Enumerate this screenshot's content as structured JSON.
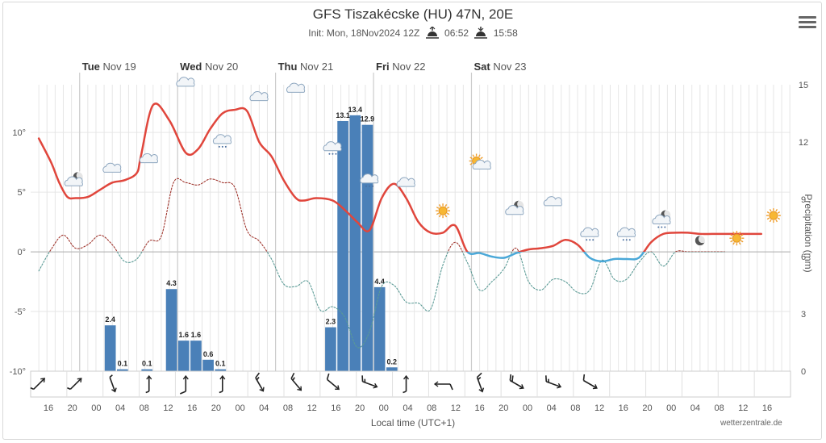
{
  "title": "GFS Tiszakécske (HU) 47N, 20E",
  "subtitle": {
    "init": "Init: Mon, 18Nov2024 12Z",
    "sunrise": "06:52",
    "sunset": "15:58"
  },
  "credit": "wetterzentrale.de",
  "menu_icon": "hamburger-menu-icon",
  "colors": {
    "temp_above": "#e0463c",
    "temp_below": "#4aa8d8",
    "dewpoint_above": "#a0362e",
    "dewpoint_below": "#5a9a95",
    "precip_bar": "#4a80b8",
    "grid": "#e6e6e6",
    "day_line": "#cccccc"
  },
  "chart_data": {
    "type": "line+bar",
    "x_unit": "hours since Mon 18 Nov 12:00 local",
    "xlabel": "Local time (UTC+1)",
    "x_tick_labels": [
      "16",
      "20",
      "00",
      "04",
      "08",
      "12",
      "16",
      "20",
      "00",
      "04",
      "08",
      "12",
      "16",
      "20",
      "00",
      "04",
      "08",
      "12",
      "16",
      "20",
      "00",
      "04",
      "08",
      "12",
      "16",
      "20",
      "00",
      "04",
      "08",
      "12",
      "16"
    ],
    "days": [
      {
        "label": "Tue",
        "date": "Nov 19"
      },
      {
        "label": "Wed",
        "date": "Nov 20"
      },
      {
        "label": "Thu",
        "date": "Nov 21"
      },
      {
        "label": "Fri",
        "date": "Nov 22"
      },
      {
        "label": "Sat",
        "date": "Nov 23"
      }
    ],
    "y_left": {
      "ticks": [
        "10°",
        "5°",
        "0°",
        "-5°",
        "-10°"
      ],
      "values": [
        10,
        5,
        0,
        -5,
        -10
      ],
      "range": [
        -10,
        14
      ]
    },
    "y_right": {
      "label": "Precipitation (mm)",
      "ticks": [
        "15",
        "12",
        "9",
        "6",
        "3",
        "0"
      ],
      "values": [
        15,
        12,
        9,
        6,
        3,
        0
      ],
      "range": [
        0,
        15
      ]
    },
    "temperature": {
      "x": [
        2,
        5,
        7,
        9,
        11,
        14,
        17,
        20,
        23,
        26,
        27,
        30,
        34,
        38,
        41,
        44,
        47,
        50,
        53,
        56,
        59,
        62,
        65,
        67,
        70,
        74,
        77,
        80,
        83,
        86,
        89,
        92,
        95,
        98,
        101,
        104,
        107,
        110,
        113,
        116,
        119,
        122,
        125,
        128,
        131,
        134,
        137,
        140,
        143,
        146,
        149,
        152,
        155,
        158,
        161,
        164,
        167,
        170,
        173,
        176,
        179
      ],
      "y": [
        9.5,
        7.5,
        5.8,
        4.6,
        4.5,
        4.6,
        5.2,
        5.8,
        6.0,
        6.6,
        8.0,
        12.3,
        11.0,
        8.3,
        8.6,
        10.3,
        11.6,
        11.9,
        11.8,
        9.2,
        8.0,
        6.0,
        4.5,
        4.3,
        4.5,
        4.3,
        3.5,
        2.5,
        1.8,
        4.5,
        5.7,
        4.5,
        2.5,
        1.6,
        1.6,
        2.2,
        0.0,
        -0.1,
        -0.4,
        -0.5,
        -0.1,
        0.2,
        0.3,
        0.5,
        1.0,
        0.6,
        -0.5,
        -0.8,
        -0.6,
        -0.6,
        -0.5,
        0.8,
        1.5,
        1.6,
        1.6,
        1.5,
        1.5,
        1.5,
        1.5,
        1.5,
        1.5
      ]
    },
    "dewpoint": {
      "x": [
        2,
        5,
        8,
        11,
        14,
        17,
        20,
        23,
        26,
        29,
        32,
        35,
        38,
        41,
        44,
        47,
        50,
        53,
        56,
        59,
        62,
        65,
        68,
        71,
        74,
        77,
        80,
        83,
        86,
        89,
        92,
        95,
        98,
        101,
        104,
        107,
        110,
        113,
        116,
        119,
        122,
        125,
        128,
        131,
        134,
        137,
        140,
        143,
        146,
        149,
        152,
        155,
        158,
        161,
        164,
        167,
        170,
        173
      ],
      "y": [
        -1.6,
        0.2,
        1.4,
        0.3,
        0.6,
        1.4,
        0.6,
        -0.8,
        -0.6,
        0.9,
        1.3,
        5.8,
        5.8,
        5.6,
        6.1,
        5.8,
        5.4,
        1.8,
        0.9,
        -0.6,
        -2.7,
        -2.9,
        -2.5,
        -4.9,
        -4.6,
        -5.5,
        -8.0,
        -6.7,
        -2.9,
        -2.8,
        -4.2,
        -4.3,
        -4.8,
        -1.1,
        0.8,
        -0.9,
        -3.2,
        -2.5,
        -1.4,
        0.3,
        -2.5,
        -3.2,
        -2.3,
        -2.5,
        -3.4,
        -3.2,
        -0.7,
        -2.3,
        -2.3,
        -0.9,
        0.0,
        -1.2,
        0.0,
        0,
        0,
        0,
        0,
        0
      ]
    },
    "precipitation": {
      "x": [
        13.5,
        16.5,
        19.5,
        22.5,
        25.5,
        28.5,
        31.5,
        34.5,
        37.5,
        40.5,
        43.5,
        46.5,
        49.5,
        52.5,
        55.5,
        58.5,
        61.5,
        64.5,
        67.5,
        70.5,
        73.5,
        76.5,
        79.5,
        82.5,
        85.5,
        88.5,
        91.5,
        94.5
      ],
      "y": [
        0,
        0,
        2.4,
        0.1,
        0,
        0.1,
        0,
        4.3,
        1.6,
        1.6,
        0.6,
        0.1,
        0,
        0,
        0,
        0,
        0,
        0,
        0,
        0,
        2.3,
        13.1,
        13.4,
        12.9,
        4.4,
        0.2,
        0,
        0
      ],
      "labels": [
        "",
        "",
        "2.4",
        "0.1",
        "",
        "0.1",
        "",
        "4.3",
        "1.6",
        "1.6",
        "0.6",
        "0.1",
        "",
        "",
        "",
        "",
        "",
        "",
        "",
        "",
        "2.3",
        "13.1",
        "13.4",
        "12.9",
        "4.4",
        "0.2",
        "",
        ""
      ]
    },
    "weather_icons": [
      {
        "x": 11,
        "temp": 5.4,
        "icon": "moon-cloud-icon"
      },
      {
        "x": 20,
        "temp": 6.4,
        "icon": "cloud-icon"
      },
      {
        "x": 29,
        "temp": 7.2,
        "icon": "cloud-icon"
      },
      {
        "x": 38,
        "temp": 13.6,
        "icon": "cloud-icon"
      },
      {
        "x": 47,
        "temp": 8.8,
        "icon": "cloud-rain-icon"
      },
      {
        "x": 56,
        "temp": 12.4,
        "icon": "cloud-icon"
      },
      {
        "x": 65,
        "temp": 13.1,
        "icon": "cloud-icon"
      },
      {
        "x": 74,
        "temp": 8.2,
        "icon": "cloud-rain-icon"
      },
      {
        "x": 83,
        "temp": 5.5,
        "icon": "cloud-rain-icon"
      },
      {
        "x": 92,
        "temp": 5.2,
        "icon": "cloud-icon"
      },
      {
        "x": 101,
        "temp": 2.9,
        "icon": "sun-icon"
      },
      {
        "x": 110,
        "temp": 6.8,
        "icon": "sun-cloud-icon"
      },
      {
        "x": 119,
        "temp": 3.0,
        "icon": "moon-cloud-icon"
      },
      {
        "x": 128,
        "temp": 3.6,
        "icon": "cloud-icon"
      },
      {
        "x": 137,
        "temp": 1.0,
        "icon": "cloud-rain-icon"
      },
      {
        "x": 146,
        "temp": 1.0,
        "icon": "cloud-rain-icon"
      },
      {
        "x": 155,
        "temp": 2.2,
        "icon": "moon-cloud-rain-icon"
      },
      {
        "x": 164,
        "temp": 0.4,
        "icon": "moon-icon"
      },
      {
        "x": 173,
        "temp": 0.6,
        "icon": "sun-icon"
      },
      {
        "x": 182,
        "temp": 2.5,
        "icon": "sun-icon"
      }
    ],
    "wind_barbs": [
      {
        "x": 2,
        "dir": 225,
        "kt": 5
      },
      {
        "x": 11,
        "dir": 225,
        "kt": 5
      },
      {
        "x": 20,
        "dir": 340,
        "kt": 5
      },
      {
        "x": 29,
        "dir": 180,
        "kt": 5
      },
      {
        "x": 38,
        "dir": 180,
        "kt": 10
      },
      {
        "x": 47,
        "dir": 180,
        "kt": 5
      },
      {
        "x": 56,
        "dir": 330,
        "kt": 15
      },
      {
        "x": 65,
        "dir": 320,
        "kt": 15
      },
      {
        "x": 74,
        "dir": 310,
        "kt": 10
      },
      {
        "x": 83,
        "dir": 290,
        "kt": 15
      },
      {
        "x": 92,
        "dir": 180,
        "kt": 5
      },
      {
        "x": 101,
        "dir": 90,
        "kt": 10
      },
      {
        "x": 110,
        "dir": 340,
        "kt": 15
      },
      {
        "x": 119,
        "dir": 300,
        "kt": 20
      },
      {
        "x": 128,
        "dir": 290,
        "kt": 15
      },
      {
        "x": 137,
        "dir": 300,
        "kt": 10
      }
    ]
  }
}
